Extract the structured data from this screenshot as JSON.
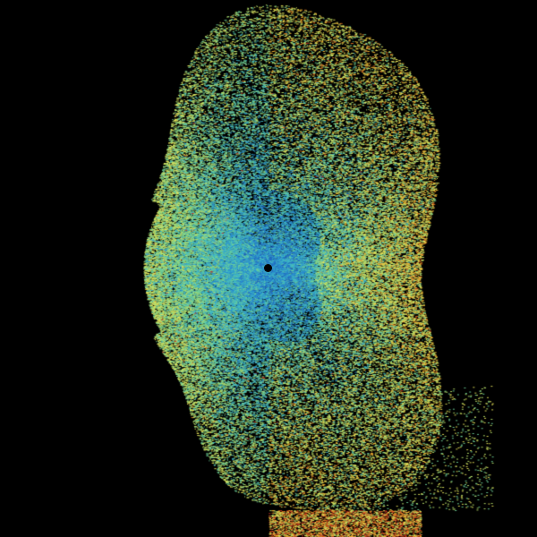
{
  "radar": {
    "background": "#000000",
    "palette": [
      "#1f5fbf",
      "#2a8fd0",
      "#3fb8c8",
      "#6fd39a",
      "#b8e06a",
      "#e8e45a",
      "#f0b030",
      "#e07020",
      "#c83020"
    ],
    "site_marker_color": "#000000"
  }
}
